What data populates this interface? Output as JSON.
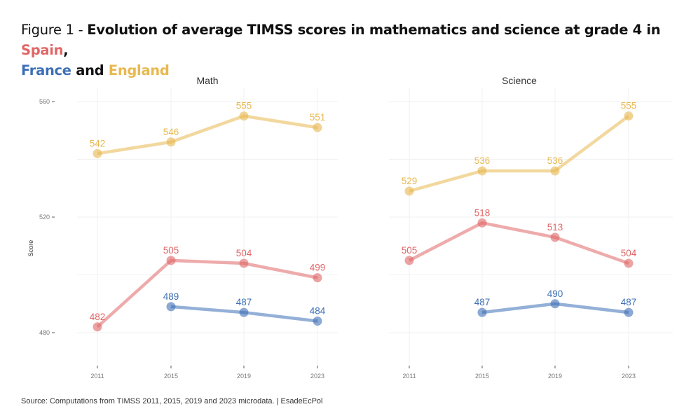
{
  "title": {
    "lead": "Figure 1 - ",
    "main": "Evolution of average TIMSS scores in mathematics and science at grade 4 in ",
    "spain": "Spain",
    "comma": ",",
    "france": "France",
    "and": " and ",
    "england": "England"
  },
  "source": "Source: Computations from TIMSS 2011, 2015, 2019 and 2023 microdata. | EsadeEcPol",
  "colors": {
    "Spain": "#e06666",
    "France": "#3d6fb6",
    "England": "#e8b84f"
  },
  "chart_data": [
    {
      "type": "line",
      "title": "Math",
      "xlabel": "",
      "ylabel": "Score",
      "x": [
        "2011",
        "2015",
        "2019",
        "2023"
      ],
      "ylim": [
        470,
        563
      ],
      "yticks": [
        480,
        520,
        560
      ],
      "grid": true,
      "series": [
        {
          "name": "England",
          "values": [
            542,
            546,
            555,
            551
          ]
        },
        {
          "name": "Spain",
          "values": [
            482,
            505,
            504,
            499
          ]
        },
        {
          "name": "France",
          "values": [
            null,
            489,
            487,
            484
          ]
        }
      ]
    },
    {
      "type": "line",
      "title": "Science",
      "xlabel": "",
      "ylabel": "",
      "x": [
        "2011",
        "2015",
        "2019",
        "2023"
      ],
      "ylim": [
        470,
        563
      ],
      "yticks": [
        480,
        520,
        560
      ],
      "grid": true,
      "series": [
        {
          "name": "England",
          "values": [
            529,
            536,
            536,
            555
          ]
        },
        {
          "name": "Spain",
          "values": [
            505,
            518,
            513,
            504
          ]
        },
        {
          "name": "France",
          "values": [
            null,
            487,
            490,
            487
          ]
        }
      ]
    }
  ]
}
